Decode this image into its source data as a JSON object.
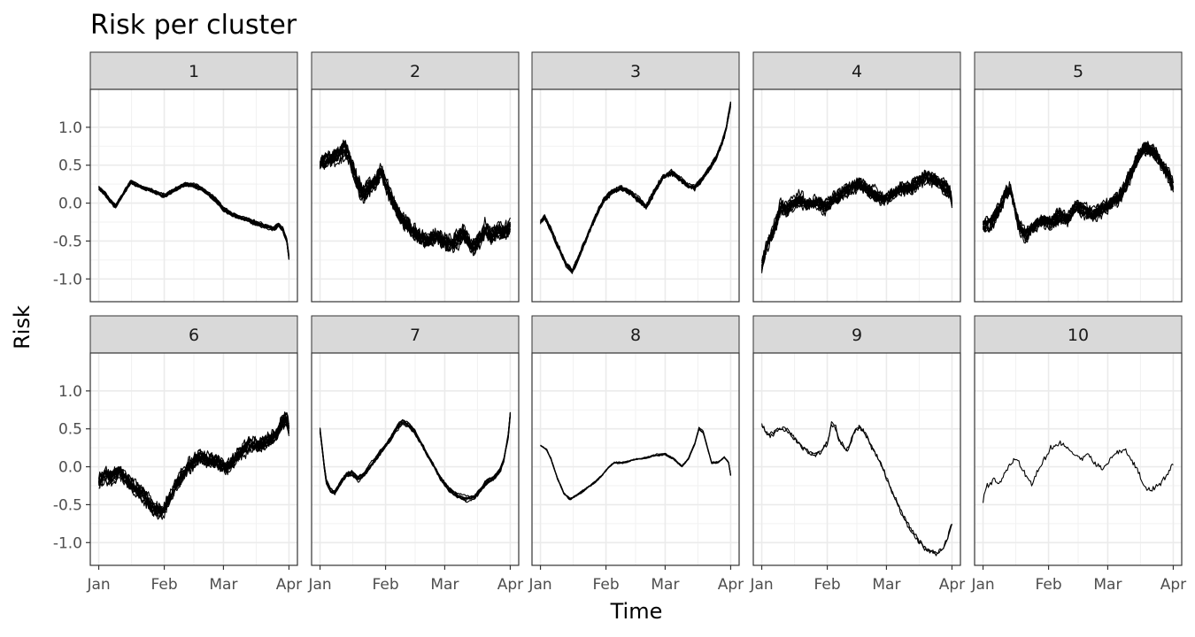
{
  "chart_data": {
    "type": "line",
    "title": "Risk per cluster",
    "xlabel": "Time",
    "ylabel": "Risk",
    "x_ticks": [
      "Jan",
      "Feb",
      "Mar",
      "Apr"
    ],
    "x_tick_days": [
      0,
      31,
      59,
      90
    ],
    "xlim_days": [
      -4,
      94
    ],
    "ylim": [
      -1.3,
      1.5
    ],
    "y_ticks": [
      1.0,
      0.5,
      0.0,
      -0.5,
      -1.0
    ],
    "y_tick_labels": [
      "1.0",
      "0.5",
      "0.0",
      "-0.5",
      "-1.0"
    ],
    "grid": true,
    "legend": "none",
    "line_color": "#000000",
    "panels": [
      {
        "label": "1",
        "n_series": 12,
        "spread": 0.03,
        "noise": 0.01,
        "points": [
          [
            0,
            0.2
          ],
          [
            3,
            0.12
          ],
          [
            5,
            0.05
          ],
          [
            8,
            -0.03
          ],
          [
            11,
            0.1
          ],
          [
            15,
            0.28
          ],
          [
            20,
            0.22
          ],
          [
            25,
            0.17
          ],
          [
            31,
            0.1
          ],
          [
            36,
            0.18
          ],
          [
            41,
            0.25
          ],
          [
            45,
            0.24
          ],
          [
            50,
            0.16
          ],
          [
            55,
            0.05
          ],
          [
            59,
            -0.08
          ],
          [
            63,
            -0.15
          ],
          [
            68,
            -0.2
          ],
          [
            73,
            -0.25
          ],
          [
            78,
            -0.3
          ],
          [
            83,
            -0.33
          ],
          [
            85,
            -0.28
          ],
          [
            87,
            -0.34
          ],
          [
            89,
            -0.5
          ],
          [
            90,
            -0.72
          ]
        ]
      },
      {
        "label": "2",
        "n_series": 12,
        "spread": 0.09,
        "noise": 0.07,
        "points": [
          [
            0,
            0.5
          ],
          [
            3,
            0.55
          ],
          [
            6,
            0.6
          ],
          [
            9,
            0.65
          ],
          [
            12,
            0.72
          ],
          [
            14,
            0.6
          ],
          [
            16,
            0.4
          ],
          [
            18,
            0.25
          ],
          [
            20,
            0.12
          ],
          [
            23,
            0.2
          ],
          [
            25,
            0.25
          ],
          [
            27,
            0.32
          ],
          [
            29,
            0.45
          ],
          [
            31,
            0.25
          ],
          [
            34,
            0.05
          ],
          [
            38,
            -0.18
          ],
          [
            42,
            -0.3
          ],
          [
            46,
            -0.42
          ],
          [
            50,
            -0.5
          ],
          [
            55,
            -0.45
          ],
          [
            60,
            -0.55
          ],
          [
            64,
            -0.5
          ],
          [
            68,
            -0.42
          ],
          [
            72,
            -0.6
          ],
          [
            75,
            -0.52
          ],
          [
            78,
            -0.35
          ],
          [
            81,
            -0.45
          ],
          [
            84,
            -0.35
          ],
          [
            87,
            -0.4
          ],
          [
            90,
            -0.32
          ]
        ]
      },
      {
        "label": "3",
        "n_series": 12,
        "spread": 0.03,
        "noise": 0.02,
        "points": [
          [
            0,
            -0.25
          ],
          [
            2,
            -0.18
          ],
          [
            4,
            -0.3
          ],
          [
            8,
            -0.55
          ],
          [
            12,
            -0.8
          ],
          [
            15,
            -0.9
          ],
          [
            18,
            -0.72
          ],
          [
            22,
            -0.45
          ],
          [
            26,
            -0.18
          ],
          [
            30,
            0.05
          ],
          [
            34,
            0.15
          ],
          [
            38,
            0.2
          ],
          [
            42,
            0.15
          ],
          [
            46,
            0.05
          ],
          [
            50,
            -0.05
          ],
          [
            54,
            0.15
          ],
          [
            58,
            0.35
          ],
          [
            62,
            0.4
          ],
          [
            66,
            0.32
          ],
          [
            70,
            0.22
          ],
          [
            73,
            0.2
          ],
          [
            76,
            0.3
          ],
          [
            80,
            0.45
          ],
          [
            83,
            0.6
          ],
          [
            86,
            0.8
          ],
          [
            88,
            1.0
          ],
          [
            90,
            1.32
          ]
        ]
      },
      {
        "label": "4",
        "n_series": 12,
        "spread": 0.07,
        "noise": 0.06,
        "points": [
          [
            0,
            -0.85
          ],
          [
            1,
            -0.7
          ],
          [
            3,
            -0.5
          ],
          [
            5,
            -0.4
          ],
          [
            7,
            -0.25
          ],
          [
            9,
            -0.05
          ],
          [
            12,
            -0.08
          ],
          [
            15,
            0.0
          ],
          [
            18,
            0.05
          ],
          [
            22,
            -0.02
          ],
          [
            26,
            0.02
          ],
          [
            30,
            -0.05
          ],
          [
            34,
            0.05
          ],
          [
            38,
            0.12
          ],
          [
            42,
            0.2
          ],
          [
            46,
            0.25
          ],
          [
            50,
            0.18
          ],
          [
            54,
            0.1
          ],
          [
            58,
            0.05
          ],
          [
            62,
            0.12
          ],
          [
            66,
            0.2
          ],
          [
            70,
            0.18
          ],
          [
            74,
            0.28
          ],
          [
            78,
            0.35
          ],
          [
            82,
            0.3
          ],
          [
            86,
            0.22
          ],
          [
            89,
            0.15
          ],
          [
            90,
            0.0
          ]
        ]
      },
      {
        "label": "5",
        "n_series": 12,
        "spread": 0.08,
        "noise": 0.06,
        "points": [
          [
            0,
            -0.3
          ],
          [
            4,
            -0.25
          ],
          [
            8,
            -0.05
          ],
          [
            11,
            0.15
          ],
          [
            13,
            0.18
          ],
          [
            15,
            -0.05
          ],
          [
            17,
            -0.3
          ],
          [
            20,
            -0.42
          ],
          [
            24,
            -0.3
          ],
          [
            28,
            -0.22
          ],
          [
            32,
            -0.25
          ],
          [
            36,
            -0.15
          ],
          [
            40,
            -0.2
          ],
          [
            44,
            -0.05
          ],
          [
            48,
            -0.1
          ],
          [
            52,
            -0.15
          ],
          [
            56,
            -0.08
          ],
          [
            60,
            -0.02
          ],
          [
            64,
            0.05
          ],
          [
            67,
            0.2
          ],
          [
            70,
            0.38
          ],
          [
            73,
            0.58
          ],
          [
            76,
            0.72
          ],
          [
            79,
            0.7
          ],
          [
            82,
            0.65
          ],
          [
            85,
            0.5
          ],
          [
            88,
            0.35
          ],
          [
            90,
            0.2
          ]
        ]
      },
      {
        "label": "6",
        "n_series": 12,
        "spread": 0.08,
        "noise": 0.06,
        "points": [
          [
            0,
            -0.2
          ],
          [
            3,
            -0.1
          ],
          [
            6,
            -0.15
          ],
          [
            10,
            -0.05
          ],
          [
            14,
            -0.2
          ],
          [
            18,
            -0.3
          ],
          [
            22,
            -0.4
          ],
          [
            26,
            -0.55
          ],
          [
            30,
            -0.6
          ],
          [
            33,
            -0.45
          ],
          [
            36,
            -0.25
          ],
          [
            40,
            -0.1
          ],
          [
            44,
            0.05
          ],
          [
            48,
            0.15
          ],
          [
            52,
            0.1
          ],
          [
            56,
            0.05
          ],
          [
            60,
            -0.02
          ],
          [
            64,
            0.1
          ],
          [
            68,
            0.22
          ],
          [
            72,
            0.3
          ],
          [
            76,
            0.28
          ],
          [
            80,
            0.35
          ],
          [
            84,
            0.42
          ],
          [
            87,
            0.6
          ],
          [
            89,
            0.62
          ],
          [
            90,
            0.5
          ]
        ]
      },
      {
        "label": "7",
        "n_series": 8,
        "spread": 0.04,
        "noise": 0.01,
        "points": [
          [
            0,
            0.48
          ],
          [
            1,
            0.25
          ],
          [
            2,
            0.0
          ],
          [
            3,
            -0.2
          ],
          [
            5,
            -0.32
          ],
          [
            7,
            -0.35
          ],
          [
            9,
            -0.25
          ],
          [
            12,
            -0.12
          ],
          [
            15,
            -0.08
          ],
          [
            18,
            -0.16
          ],
          [
            21,
            -0.1
          ],
          [
            25,
            0.05
          ],
          [
            29,
            0.2
          ],
          [
            33,
            0.35
          ],
          [
            36,
            0.5
          ],
          [
            39,
            0.6
          ],
          [
            42,
            0.55
          ],
          [
            45,
            0.45
          ],
          [
            49,
            0.25
          ],
          [
            53,
            0.05
          ],
          [
            57,
            -0.15
          ],
          [
            61,
            -0.3
          ],
          [
            65,
            -0.38
          ],
          [
            69,
            -0.42
          ],
          [
            73,
            -0.4
          ],
          [
            76,
            -0.3
          ],
          [
            79,
            -0.2
          ],
          [
            82,
            -0.15
          ],
          [
            85,
            -0.05
          ],
          [
            87,
            0.1
          ],
          [
            89,
            0.4
          ],
          [
            90,
            0.7
          ]
        ]
      },
      {
        "label": "8",
        "n_series": 4,
        "spread": 0.015,
        "noise": 0.005,
        "points": [
          [
            0,
            0.28
          ],
          [
            3,
            0.22
          ],
          [
            5,
            0.1
          ],
          [
            8,
            -0.15
          ],
          [
            11,
            -0.35
          ],
          [
            14,
            -0.43
          ],
          [
            17,
            -0.38
          ],
          [
            20,
            -0.32
          ],
          [
            23,
            -0.26
          ],
          [
            26,
            -0.2
          ],
          [
            29,
            -0.12
          ],
          [
            32,
            -0.02
          ],
          [
            35,
            0.05
          ],
          [
            39,
            0.05
          ],
          [
            43,
            0.08
          ],
          [
            47,
            0.1
          ],
          [
            51,
            0.12
          ],
          [
            55,
            0.15
          ],
          [
            59,
            0.16
          ],
          [
            63,
            0.1
          ],
          [
            67,
            0.0
          ],
          [
            70,
            0.1
          ],
          [
            73,
            0.3
          ],
          [
            75,
            0.5
          ],
          [
            77,
            0.45
          ],
          [
            79,
            0.25
          ],
          [
            81,
            0.05
          ],
          [
            84,
            0.05
          ],
          [
            87,
            0.12
          ],
          [
            89,
            0.05
          ],
          [
            90,
            -0.12
          ]
        ]
      },
      {
        "label": "9",
        "n_series": 2,
        "spread": 0.02,
        "noise": 0.03,
        "points": [
          [
            0,
            0.55
          ],
          [
            2,
            0.45
          ],
          [
            4,
            0.4
          ],
          [
            7,
            0.48
          ],
          [
            10,
            0.5
          ],
          [
            13,
            0.45
          ],
          [
            16,
            0.35
          ],
          [
            19,
            0.25
          ],
          [
            22,
            0.18
          ],
          [
            25,
            0.15
          ],
          [
            28,
            0.2
          ],
          [
            31,
            0.3
          ],
          [
            33,
            0.55
          ],
          [
            35,
            0.5
          ],
          [
            37,
            0.32
          ],
          [
            40,
            0.2
          ],
          [
            42,
            0.3
          ],
          [
            44,
            0.45
          ],
          [
            46,
            0.52
          ],
          [
            48,
            0.48
          ],
          [
            50,
            0.38
          ],
          [
            53,
            0.2
          ],
          [
            56,
            0.05
          ],
          [
            59,
            -0.15
          ],
          [
            62,
            -0.35
          ],
          [
            65,
            -0.55
          ],
          [
            68,
            -0.72
          ],
          [
            71,
            -0.85
          ],
          [
            74,
            -0.98
          ],
          [
            77,
            -1.08
          ],
          [
            80,
            -1.12
          ],
          [
            83,
            -1.15
          ],
          [
            86,
            -1.08
          ],
          [
            89,
            -0.85
          ],
          [
            90,
            -0.75
          ]
        ]
      },
      {
        "label": "10",
        "n_series": 1,
        "spread": 0.0,
        "noise": 0.035,
        "points": [
          [
            0,
            -0.45
          ],
          [
            2,
            -0.25
          ],
          [
            5,
            -0.18
          ],
          [
            8,
            -0.2
          ],
          [
            11,
            -0.05
          ],
          [
            14,
            0.08
          ],
          [
            17,
            0.05
          ],
          [
            20,
            -0.1
          ],
          [
            23,
            -0.22
          ],
          [
            26,
            -0.05
          ],
          [
            29,
            0.1
          ],
          [
            32,
            0.25
          ],
          [
            35,
            0.3
          ],
          [
            38,
            0.32
          ],
          [
            41,
            0.2
          ],
          [
            44,
            0.15
          ],
          [
            47,
            0.1
          ],
          [
            50,
            0.15
          ],
          [
            53,
            0.05
          ],
          [
            56,
            -0.02
          ],
          [
            59,
            0.05
          ],
          [
            62,
            0.15
          ],
          [
            65,
            0.22
          ],
          [
            68,
            0.2
          ],
          [
            71,
            0.05
          ],
          [
            74,
            -0.1
          ],
          [
            77,
            -0.28
          ],
          [
            80,
            -0.3
          ],
          [
            83,
            -0.25
          ],
          [
            86,
            -0.15
          ],
          [
            89,
            0.0
          ],
          [
            90,
            0.05
          ]
        ]
      }
    ]
  }
}
